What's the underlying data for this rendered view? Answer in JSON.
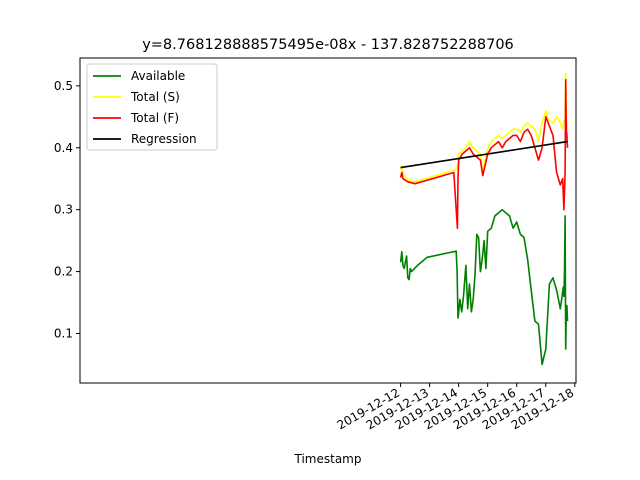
{
  "chart_data": {
    "type": "line",
    "title": "y=8.768128888575495e-08x - 137.828752288706",
    "xlabel": "Timestamp",
    "ylabel": "",
    "x_type": "datetime",
    "xlim": [
      "2019-11-30 23:00",
      "2019-12-18 01:00"
    ],
    "ylim": [
      0.02,
      0.545
    ],
    "x_ticks": [
      "2019-12-12",
      "2019-12-13",
      "2019-12-14",
      "2019-12-15",
      "2019-12-16",
      "2019-12-17",
      "2019-12-18"
    ],
    "y_ticks": [
      0.1,
      0.2,
      0.3,
      0.4,
      0.5
    ],
    "y_tick_labels": [
      "0.1",
      "0.2",
      "0.3",
      "0.4",
      "0.5"
    ],
    "grid": false,
    "legend_position": "top-left",
    "series": [
      {
        "name": "Available",
        "color": "#008000",
        "x": [
          "2019-12-12 00:00",
          "2019-12-12 01:00",
          "2019-12-12 02:00",
          "2019-12-12 03:00",
          "2019-12-12 04:00",
          "2019-12-12 05:00",
          "2019-12-12 06:00",
          "2019-12-12 07:00",
          "2019-12-12 08:00",
          "2019-12-12 09:00",
          "2019-12-12 14:00",
          "2019-12-12 22:00",
          "2019-12-13 22:00",
          "2019-12-13 22:45",
          "2019-12-13 23:15",
          "2019-12-13 23:30",
          "2019-12-13 23:45",
          "2019-12-14 01:00",
          "2019-12-14 02:30",
          "2019-12-14 04:00",
          "2019-12-14 06:00",
          "2019-12-14 07:30",
          "2019-12-14 09:00",
          "2019-12-14 10:30",
          "2019-12-14 12:00",
          "2019-12-14 13:30",
          "2019-12-14 15:00",
          "2019-12-14 16:30",
          "2019-12-14 18:00",
          "2019-12-14 19:30",
          "2019-12-14 21:00",
          "2019-12-14 22:30",
          "2019-12-15 00:00",
          "2019-12-15 03:00",
          "2019-12-15 06:00",
          "2019-12-15 09:00",
          "2019-12-15 12:00",
          "2019-12-15 15:00",
          "2019-12-15 18:00",
          "2019-12-15 21:00",
          "2019-12-16 00:00",
          "2019-12-16 03:00",
          "2019-12-16 06:00",
          "2019-12-16 09:00",
          "2019-12-16 12:00",
          "2019-12-16 15:00",
          "2019-12-16 18:00",
          "2019-12-16 21:00",
          "2019-12-17 00:00",
          "2019-12-17 03:00",
          "2019-12-17 06:00",
          "2019-12-17 09:00",
          "2019-12-17 12:00",
          "2019-12-17 13:30",
          "2019-12-17 14:30",
          "2019-12-17 15:00",
          "2019-12-17 15:30",
          "2019-12-17 16:00",
          "2019-12-17 16:30",
          "2019-12-17 17:00",
          "2019-12-17 17:30",
          "2019-12-17 18:00"
        ],
        "y": [
          0.215,
          0.232,
          0.21,
          0.205,
          0.215,
          0.225,
          0.19,
          0.187,
          0.205,
          0.2,
          0.21,
          0.223,
          0.233,
          0.2,
          0.15,
          0.125,
          0.13,
          0.155,
          0.135,
          0.16,
          0.21,
          0.14,
          0.18,
          0.135,
          0.155,
          0.195,
          0.26,
          0.255,
          0.2,
          0.22,
          0.25,
          0.205,
          0.265,
          0.27,
          0.29,
          0.295,
          0.3,
          0.295,
          0.29,
          0.27,
          0.28,
          0.26,
          0.255,
          0.22,
          0.17,
          0.12,
          0.115,
          0.05,
          0.075,
          0.18,
          0.19,
          0.17,
          0.14,
          0.16,
          0.175,
          0.16,
          0.2,
          0.29,
          0.075,
          0.135,
          0.145,
          0.12
        ]
      },
      {
        "name": "Total (S)",
        "color": "#ffff00",
        "x": [
          "2019-12-12 00:00",
          "2019-12-12 01:00",
          "2019-12-12 02:00",
          "2019-12-12 06:00",
          "2019-12-12 12:00",
          "2019-12-13 22:00",
          "2019-12-13 23:00",
          "2019-12-14 00:00",
          "2019-12-14 03:00",
          "2019-12-14 06:00",
          "2019-12-14 09:00",
          "2019-12-14 12:00",
          "2019-12-14 15:00",
          "2019-12-14 18:00",
          "2019-12-14 20:00",
          "2019-12-15 00:00",
          "2019-12-15 03:00",
          "2019-12-15 06:00",
          "2019-12-15 09:00",
          "2019-12-15 12:00",
          "2019-12-15 15:00",
          "2019-12-15 18:00",
          "2019-12-15 21:00",
          "2019-12-16 00:00",
          "2019-12-16 03:00",
          "2019-12-16 06:00",
          "2019-12-16 09:00",
          "2019-12-16 12:00",
          "2019-12-16 15:00",
          "2019-12-16 18:00",
          "2019-12-16 21:00",
          "2019-12-17 00:00",
          "2019-12-17 02:00",
          "2019-12-17 06:00",
          "2019-12-17 09:00",
          "2019-12-17 12:00",
          "2019-12-17 14:00",
          "2019-12-17 15:00",
          "2019-12-17 16:00",
          "2019-12-17 16:30",
          "2019-12-17 17:00",
          "2019-12-17 17:30",
          "2019-12-17 18:00"
        ],
        "y": [
          0.365,
          0.37,
          0.358,
          0.348,
          0.345,
          0.365,
          0.37,
          0.39,
          0.395,
          0.4,
          0.41,
          0.4,
          0.395,
          0.39,
          0.36,
          0.4,
          0.41,
          0.415,
          0.42,
          0.415,
          0.42,
          0.425,
          0.43,
          0.43,
          0.425,
          0.435,
          0.44,
          0.435,
          0.43,
          0.41,
          0.44,
          0.46,
          0.445,
          0.44,
          0.45,
          0.44,
          0.43,
          0.445,
          0.44,
          0.52,
          0.45,
          0.44,
          0.43
        ]
      },
      {
        "name": "Total (F)",
        "color": "#ff0000",
        "x": [
          "2019-12-12 00:00",
          "2019-12-12 01:00",
          "2019-12-12 02:00",
          "2019-12-12 06:00",
          "2019-12-12 12:00",
          "2019-12-13 20:00",
          "2019-12-13 23:00",
          "2019-12-13 23:30",
          "2019-12-14 00:00",
          "2019-12-14 03:00",
          "2019-12-14 06:00",
          "2019-12-14 09:00",
          "2019-12-14 12:00",
          "2019-12-14 15:00",
          "2019-12-14 18:00",
          "2019-12-14 20:00",
          "2019-12-15 00:00",
          "2019-12-15 03:00",
          "2019-12-15 06:00",
          "2019-12-15 09:00",
          "2019-12-15 12:00",
          "2019-12-15 15:00",
          "2019-12-15 18:00",
          "2019-12-15 21:00",
          "2019-12-16 00:00",
          "2019-12-16 03:00",
          "2019-12-16 06:00",
          "2019-12-16 09:00",
          "2019-12-16 12:00",
          "2019-12-16 15:00",
          "2019-12-16 18:00",
          "2019-12-16 21:00",
          "2019-12-17 00:00",
          "2019-12-17 02:00",
          "2019-12-17 06:00",
          "2019-12-17 09:00",
          "2019-12-17 12:00",
          "2019-12-17 14:00",
          "2019-12-17 15:00",
          "2019-12-17 16:00",
          "2019-12-17 16:30",
          "2019-12-17 17:00",
          "2019-12-17 17:30",
          "2019-12-17 18:00"
        ],
        "y": [
          0.352,
          0.36,
          0.35,
          0.345,
          0.342,
          0.36,
          0.27,
          0.35,
          0.38,
          0.39,
          0.395,
          0.4,
          0.39,
          0.385,
          0.38,
          0.355,
          0.39,
          0.4,
          0.405,
          0.41,
          0.4,
          0.41,
          0.415,
          0.42,
          0.42,
          0.41,
          0.425,
          0.43,
          0.42,
          0.4,
          0.38,
          0.4,
          0.45,
          0.44,
          0.42,
          0.36,
          0.34,
          0.35,
          0.3,
          0.36,
          0.51,
          0.43,
          0.42,
          0.4
        ]
      },
      {
        "name": "Regression",
        "color": "#000000",
        "x": [
          "2019-12-12 00:00",
          "2019-12-17 18:00"
        ],
        "y": [
          0.368,
          0.41
        ]
      }
    ]
  }
}
